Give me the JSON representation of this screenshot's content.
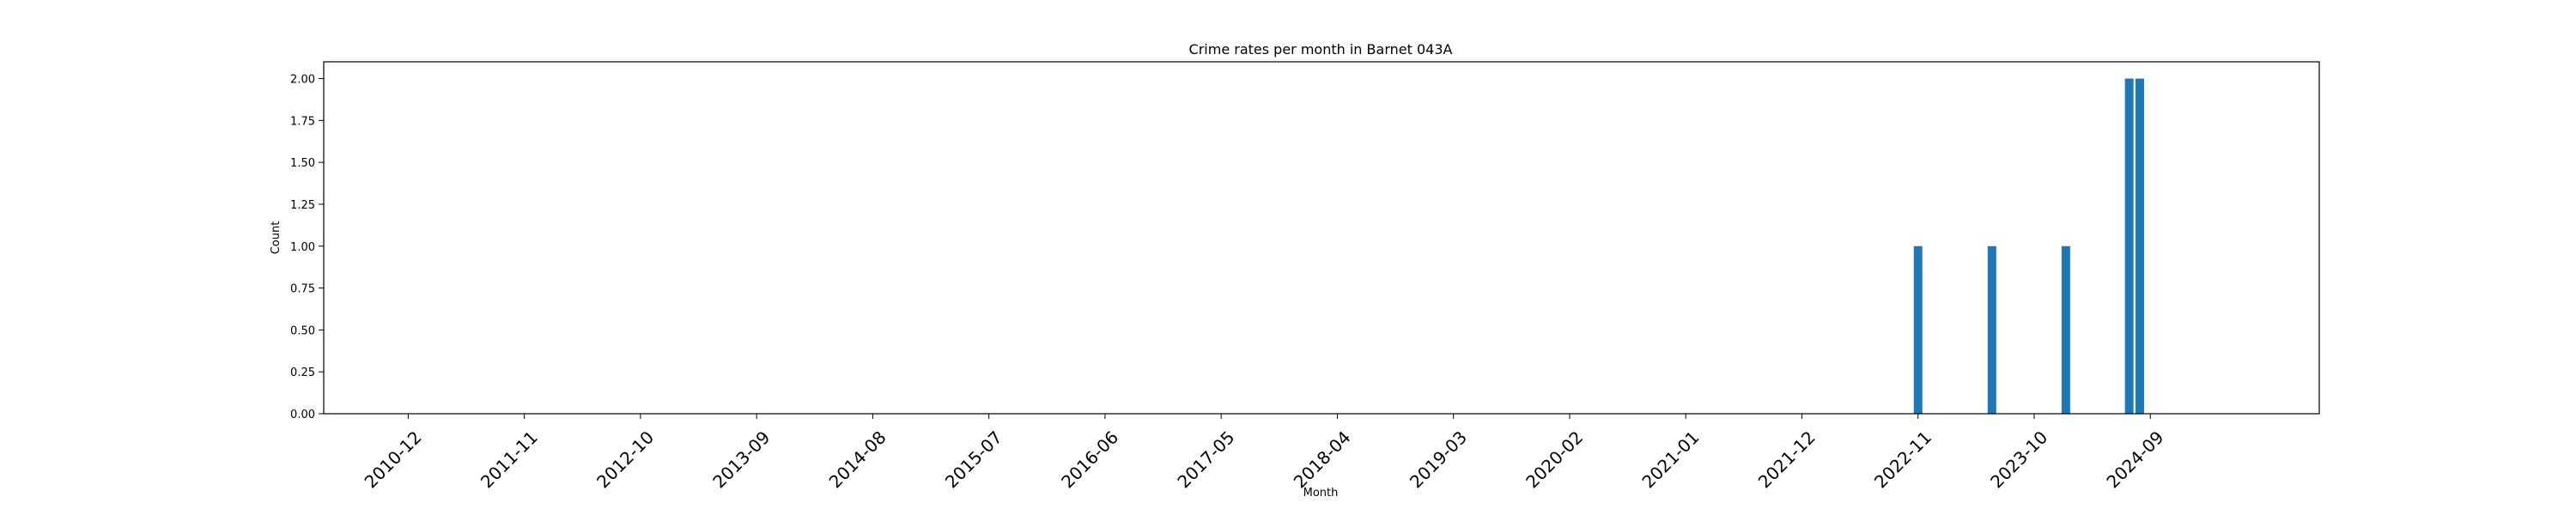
{
  "chart_data": {
    "type": "bar",
    "title": "Crime rates per month in Barnet 043A",
    "xlabel": "Month",
    "ylabel": "Count",
    "ylim": [
      0,
      2.1
    ],
    "xlim": [
      "2010-04",
      "2026-01"
    ],
    "x_tick_labels": [
      "2010-12",
      "2011-11",
      "2012-10",
      "2013-09",
      "2014-08",
      "2015-07",
      "2016-06",
      "2017-05",
      "2018-04",
      "2019-03",
      "2020-02",
      "2021-01",
      "2021-12",
      "2022-11",
      "2023-10",
      "2024-09"
    ],
    "y_tick_labels": [
      "0.00",
      "0.25",
      "0.50",
      "0.75",
      "1.00",
      "1.25",
      "1.50",
      "1.75",
      "2.00"
    ],
    "bars": [
      {
        "month": "2022-11",
        "value": 1
      },
      {
        "month": "2023-06",
        "value": 1
      },
      {
        "month": "2024-01",
        "value": 1
      },
      {
        "month": "2024-07",
        "value": 2
      },
      {
        "month": "2024-08",
        "value": 2
      }
    ],
    "bar_color": "#1f77b4",
    "grid": false,
    "legend": "none"
  }
}
